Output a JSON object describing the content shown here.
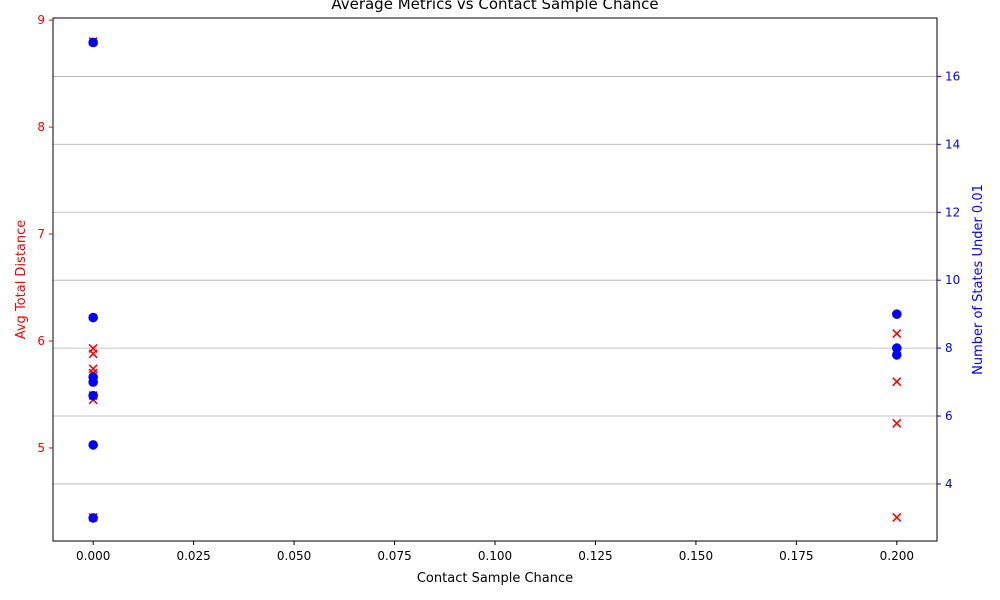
{
  "chart_data": {
    "type": "scatter",
    "title": "Average Metrics vs Contact Sample Chance",
    "xlabel": "Contact Sample Chance",
    "ylabel_left": "Avg Total Distance",
    "ylabel_right": "Number of States Under 0.01",
    "xlim": [
      -0.01,
      0.21
    ],
    "ylim_left": [
      4.13,
      9.02
    ],
    "ylim_right": [
      2.32,
      17.72
    ],
    "xticks": [
      "0.000",
      "0.025",
      "0.050",
      "0.075",
      "0.100",
      "0.125",
      "0.150",
      "0.175",
      "0.200"
    ],
    "yticks_left": [
      "5",
      "6",
      "7",
      "8",
      "9"
    ],
    "yticks_right": [
      "4",
      "6",
      "8",
      "10",
      "12",
      "14",
      "16"
    ],
    "grid": "horizontal lines at right-axis ticks",
    "colors": {
      "left": "#ff0000",
      "right": "#0000ff"
    },
    "series": [
      {
        "axis": "left",
        "marker": "x",
        "color": "#ff0000",
        "x": [
          0.0,
          0.0,
          0.0,
          0.0,
          0.0,
          0.0,
          0.0,
          0.0,
          0.2,
          0.2,
          0.2,
          0.2
        ],
        "y": [
          8.8,
          5.93,
          5.88,
          5.74,
          5.7,
          5.49,
          5.45,
          4.35,
          6.07,
          5.62,
          5.23,
          4.35
        ]
      },
      {
        "axis": "right",
        "marker": "o",
        "color": "#0000ff",
        "x": [
          0.0,
          0.0,
          0.0,
          0.0,
          0.0,
          0.0,
          0.0,
          0.2,
          0.2,
          0.2
        ],
        "y": [
          17.0,
          8.9,
          7.15,
          7.0,
          6.6,
          5.15,
          3.0,
          9.0,
          8.0,
          7.8
        ]
      }
    ]
  }
}
